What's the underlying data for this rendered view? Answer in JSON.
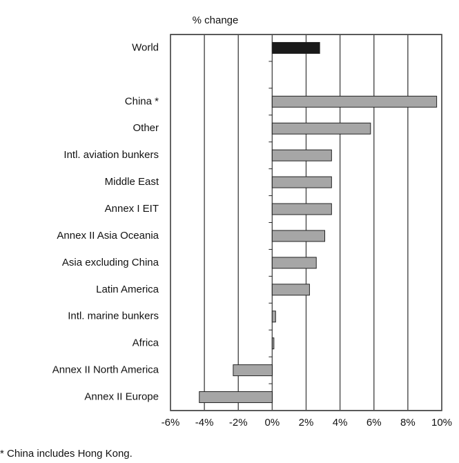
{
  "chart_data": {
    "type": "barh",
    "axis_label": "% change",
    "footnote": "* China includes Hong Kong.",
    "categories": [
      "World",
      null,
      "China *",
      "Other",
      "Intl. aviation bunkers",
      "Middle East",
      "Annex I EIT",
      "Annex II Asia Oceania",
      "Asia excluding China",
      "Latin America",
      "Intl. marine bunkers",
      "Africa",
      "Annex II North America",
      "Annex II Europe"
    ],
    "values": [
      2.8,
      null,
      9.7,
      5.8,
      3.5,
      3.5,
      3.5,
      3.1,
      2.6,
      2.2,
      0.2,
      0.1,
      -2.3,
      -4.3
    ],
    "colors": [
      "#1a1a1a",
      null,
      "#a6a6a6",
      "#a6a6a6",
      "#a6a6a6",
      "#a6a6a6",
      "#a6a6a6",
      "#a6a6a6",
      "#a6a6a6",
      "#a6a6a6",
      "#a6a6a6",
      "#a6a6a6",
      "#a6a6a6",
      "#a6a6a6"
    ],
    "xlim": [
      -6,
      10
    ],
    "xticks": [
      {
        "value": -6,
        "label": "-6%"
      },
      {
        "value": -4,
        "label": "-4%"
      },
      {
        "value": -2,
        "label": "-2%"
      },
      {
        "value": 0,
        "label": "0%"
      },
      {
        "value": 2,
        "label": "2%"
      },
      {
        "value": 4,
        "label": "4%"
      },
      {
        "value": 6,
        "label": "6%"
      },
      {
        "value": 8,
        "label": "8%"
      },
      {
        "value": 10,
        "label": "10%"
      }
    ],
    "grid": true
  }
}
